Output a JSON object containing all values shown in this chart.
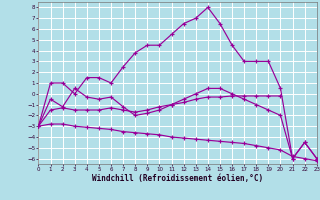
{
  "xlabel": "Windchill (Refroidissement éolien,°C)",
  "bg_color": "#b2dfe8",
  "grid_color": "#ffffff",
  "line_color": "#990099",
  "xlim": [
    0,
    23
  ],
  "ylim": [
    -6.5,
    8.5
  ],
  "xticks": [
    0,
    1,
    2,
    3,
    4,
    5,
    6,
    7,
    8,
    9,
    10,
    11,
    12,
    13,
    14,
    15,
    16,
    17,
    18,
    19,
    20,
    21,
    22,
    23
  ],
  "yticks": [
    -6,
    -5,
    -4,
    -3,
    -2,
    -1,
    0,
    1,
    2,
    3,
    4,
    5,
    6,
    7,
    8
  ],
  "line1_x": [
    0,
    1,
    2,
    3,
    4,
    5,
    6,
    7,
    8,
    9,
    10,
    11,
    12,
    13,
    14,
    15,
    16,
    17,
    18,
    19,
    20,
    21,
    22,
    23
  ],
  "line1_y": [
    -3.0,
    1.0,
    1.0,
    0.0,
    1.5,
    1.5,
    1.0,
    2.5,
    3.8,
    4.5,
    4.5,
    5.5,
    6.5,
    7.0,
    8.0,
    6.5,
    4.5,
    3.0,
    3.0,
    3.0,
    0.5,
    -6.0,
    -4.5,
    -6.0
  ],
  "line2_x": [
    0,
    1,
    2,
    3,
    4,
    5,
    6,
    7,
    8,
    9,
    10,
    11,
    12,
    13,
    14,
    15,
    16,
    17,
    18,
    19,
    20,
    21,
    22,
    23
  ],
  "line2_y": [
    -3.0,
    -0.5,
    -1.2,
    0.5,
    -0.3,
    -0.5,
    -0.3,
    -1.2,
    -2.0,
    -1.8,
    -1.5,
    -1.0,
    -0.5,
    0.0,
    0.5,
    0.5,
    0.0,
    -0.5,
    -1.0,
    -1.5,
    -2.0,
    -6.0,
    -4.5,
    -6.0
  ],
  "line3_x": [
    0,
    1,
    2,
    3,
    4,
    5,
    6,
    7,
    8,
    9,
    10,
    11,
    12,
    13,
    14,
    15,
    16,
    17,
    18,
    19,
    20
  ],
  "line3_y": [
    -3.0,
    -1.5,
    -1.3,
    -1.5,
    -1.5,
    -1.5,
    -1.3,
    -1.5,
    -1.7,
    -1.5,
    -1.2,
    -1.0,
    -0.8,
    -0.5,
    -0.3,
    -0.3,
    -0.2,
    -0.2,
    -0.2,
    -0.2,
    -0.2
  ],
  "line4_x": [
    0,
    1,
    2,
    3,
    4,
    5,
    6,
    7,
    8,
    9,
    10,
    11,
    12,
    13,
    14,
    15,
    16,
    17,
    18,
    19,
    20,
    21,
    22,
    23
  ],
  "line4_y": [
    -3.0,
    -2.8,
    -2.8,
    -3.0,
    -3.1,
    -3.2,
    -3.3,
    -3.5,
    -3.6,
    -3.7,
    -3.8,
    -4.0,
    -4.1,
    -4.2,
    -4.3,
    -4.4,
    -4.5,
    -4.6,
    -4.8,
    -5.0,
    -5.2,
    -5.8,
    -6.0,
    -6.2
  ]
}
